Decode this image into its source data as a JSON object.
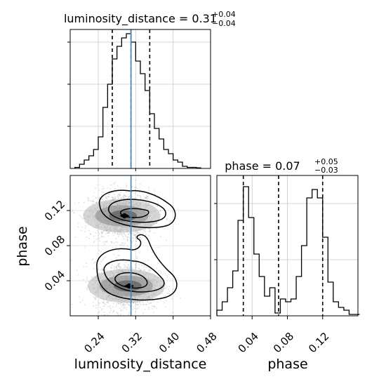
{
  "chart_data": [
    {
      "type": "histogram",
      "panel": "luminosity_distance-marginal",
      "title": {
        "main": "luminosity_distance = 0.31",
        "sup": "+0.04",
        "sub": "−0.04"
      },
      "xlim": [
        0.18,
        0.48
      ],
      "bins": [
        0.19,
        0.2,
        0.21,
        0.22,
        0.23,
        0.24,
        0.25,
        0.26,
        0.27,
        0.28,
        0.29,
        0.3,
        0.31,
        0.32,
        0.33,
        0.34,
        0.35,
        0.36,
        0.37,
        0.38,
        0.39,
        0.4,
        0.41,
        0.42,
        0.43,
        0.44,
        0.45,
        0.46
      ],
      "counts": [
        0.5,
        2,
        4,
        6,
        9,
        15,
        29,
        40,
        52,
        58,
        62,
        64,
        60,
        51,
        45,
        37,
        26,
        19,
        14,
        9,
        7,
        4,
        3,
        1,
        0.5,
        0.5,
        0.3
      ],
      "quantiles": [
        0.27,
        0.31,
        0.35
      ],
      "truth": 0.31,
      "grid": true
    },
    {
      "type": "scatter-density",
      "panel": "joint",
      "x_param": "luminosity_distance",
      "y_param": "phase",
      "xlim": [
        0.18,
        0.48
      ],
      "ylim": [
        0.0,
        0.16
      ],
      "xticks": [
        "0.24",
        "0.32",
        "0.40",
        "0.48"
      ],
      "yticks": [
        "0.04",
        "0.08",
        "0.12"
      ],
      "xlabel": "luminosity_distance",
      "ylabel": "phase",
      "modes": [
        {
          "x": 0.29,
          "y": 0.114
        },
        {
          "x": 0.3,
          "y": 0.034
        }
      ],
      "truth_x": 0.31,
      "grid": true
    },
    {
      "type": "histogram",
      "panel": "phase-marginal",
      "title": {
        "main": "phase = 0.07",
        "sup": "+0.05",
        "sub": "−0.03"
      },
      "xlim": [
        0.0,
        0.16
      ],
      "bins": [
        0.0,
        0.006,
        0.012,
        0.018,
        0.024,
        0.03,
        0.036,
        0.042,
        0.048,
        0.054,
        0.06,
        0.066,
        0.072,
        0.078,
        0.084,
        0.09,
        0.096,
        0.102,
        0.108,
        0.114,
        0.12,
        0.126,
        0.132,
        0.138,
        0.144,
        0.15,
        0.156,
        0.162
      ],
      "counts": [
        2,
        5,
        10,
        16,
        34,
        46,
        35,
        22,
        14,
        7,
        10,
        1,
        6,
        5,
        6,
        14,
        25,
        42,
        45,
        42,
        28,
        12,
        5,
        3,
        2,
        0.5,
        0.5
      ],
      "quantiles": [
        0.03,
        0.07,
        0.12
      ],
      "xticks": [
        "0.04",
        "0.08",
        "0.12"
      ],
      "xlabel": "phase",
      "grid": true
    }
  ]
}
